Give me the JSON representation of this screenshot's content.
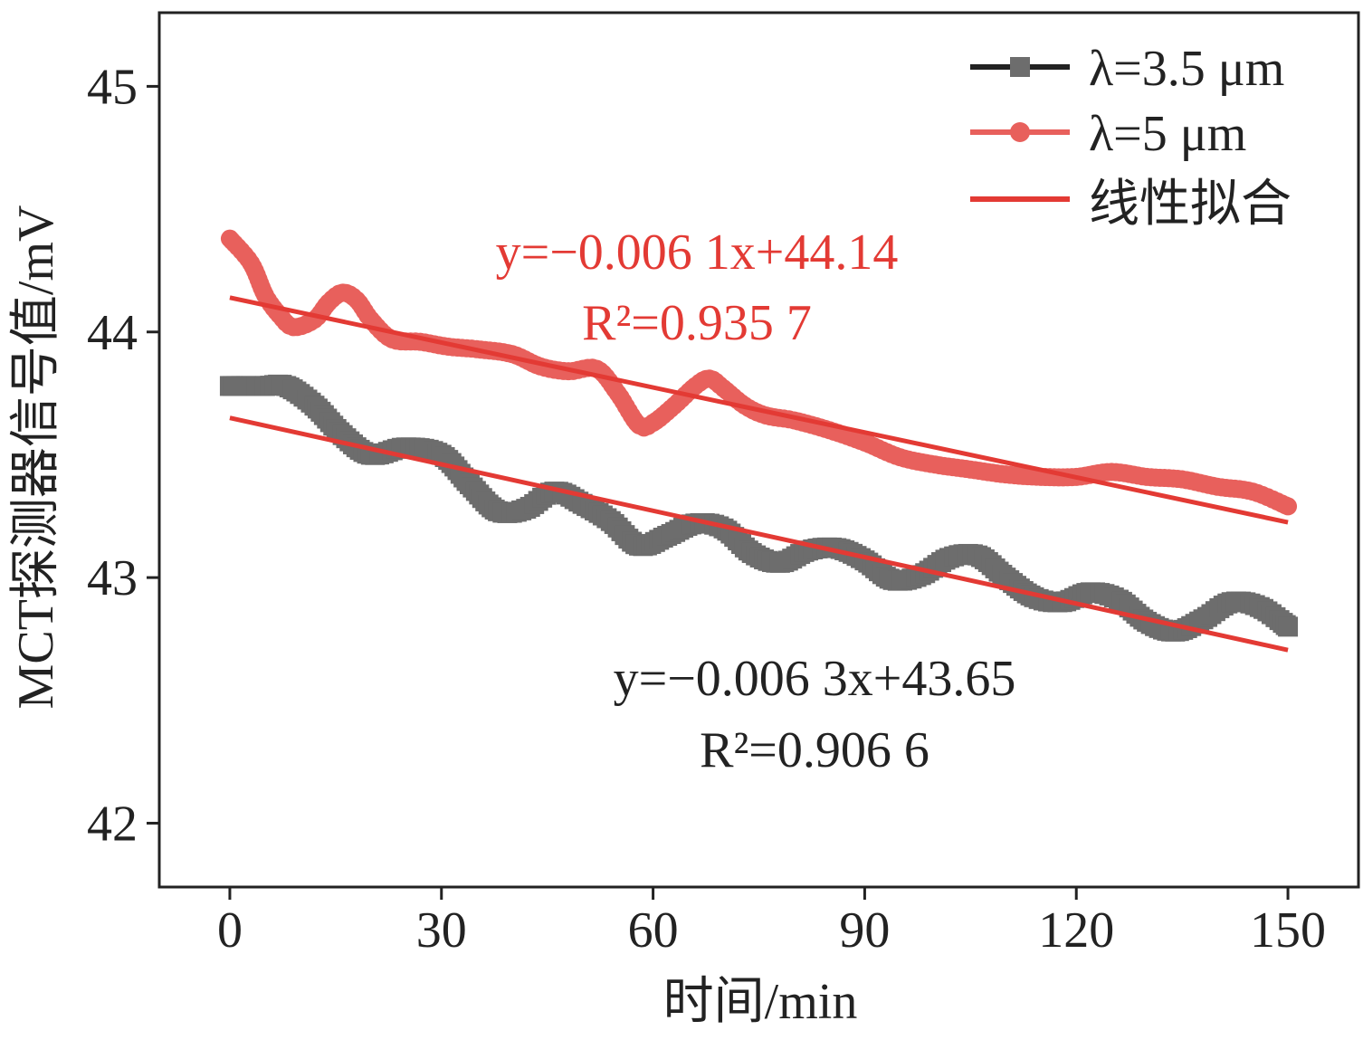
{
  "chart_data": {
    "type": "line",
    "xlabel": "时间/min",
    "ylabel": "MCT探测器信号值/mV",
    "xlim": [
      -10,
      160
    ],
    "ylim": [
      41.74,
      45.3
    ],
    "xticks": [
      0,
      30,
      60,
      90,
      120,
      150
    ],
    "yticks": [
      42,
      43,
      44,
      45
    ],
    "grid": false,
    "legend_position": "top-right",
    "legend": [
      {
        "label": "λ=3.5 μm",
        "color": "#6d6d6d",
        "marker": "square"
      },
      {
        "label": "λ=5 μm",
        "color": "#e8605c",
        "marker": "circle"
      },
      {
        "label": "线性拟合",
        "color": "#e33a34",
        "marker": "none"
      }
    ],
    "series": [
      {
        "name": "λ=3.5 μm",
        "color": "#6d6d6d",
        "marker": "square",
        "x": [
          0,
          5,
          8,
          12,
          16,
          20,
          25,
          30,
          34,
          38,
          42,
          46,
          50,
          54,
          58,
          62,
          66,
          70,
          74,
          78,
          82,
          86,
          90,
          94,
          98,
          102,
          106,
          110,
          114,
          118,
          122,
          126,
          130,
          134,
          138,
          142,
          146,
          150
        ],
        "y": [
          43.78,
          43.78,
          43.78,
          43.7,
          43.58,
          43.5,
          43.53,
          43.5,
          43.38,
          43.27,
          43.28,
          43.35,
          43.3,
          43.23,
          43.13,
          43.17,
          43.22,
          43.2,
          43.1,
          43.06,
          43.11,
          43.12,
          43.07,
          42.99,
          43.01,
          43.08,
          43.09,
          43.0,
          42.92,
          42.9,
          42.94,
          42.91,
          42.82,
          42.78,
          42.83,
          42.9,
          42.88,
          42.8
        ]
      },
      {
        "name": "λ=5 μm",
        "color": "#e8605c",
        "marker": "circle",
        "x": [
          0,
          3,
          5,
          7,
          9,
          12,
          14,
          16,
          18,
          20,
          23,
          27,
          31,
          35,
          40,
          44,
          48,
          52,
          55,
          58,
          60,
          63,
          66,
          68,
          70,
          73,
          76,
          80,
          85,
          90,
          95,
          100,
          105,
          110,
          115,
          120,
          125,
          130,
          135,
          140,
          145,
          150
        ],
        "y": [
          44.38,
          44.28,
          44.15,
          44.07,
          44.02,
          44.05,
          44.12,
          44.16,
          44.13,
          44.05,
          43.97,
          43.96,
          43.94,
          43.93,
          43.91,
          43.86,
          43.84,
          43.85,
          43.75,
          43.62,
          43.63,
          43.7,
          43.78,
          43.81,
          43.77,
          43.7,
          43.66,
          43.64,
          43.6,
          43.55,
          43.49,
          43.46,
          43.44,
          43.42,
          43.41,
          43.41,
          43.43,
          43.41,
          43.4,
          43.37,
          43.35,
          43.29
        ]
      }
    ],
    "fits": [
      {
        "name": "线性拟合",
        "color": "#e33a34",
        "slope": -0.0061,
        "intercept": 44.14,
        "x_range": [
          0,
          150
        ],
        "equation": "y=−0.006 1x+44.14",
        "r2": "R²=0.935 7"
      },
      {
        "name": "线性拟合",
        "color": "#e33a34",
        "slope": -0.0063,
        "intercept": 43.65,
        "x_range": [
          0,
          150
        ],
        "equation": "y=−0.006 3x+43.65",
        "r2": "R²=0.906 6"
      }
    ]
  }
}
